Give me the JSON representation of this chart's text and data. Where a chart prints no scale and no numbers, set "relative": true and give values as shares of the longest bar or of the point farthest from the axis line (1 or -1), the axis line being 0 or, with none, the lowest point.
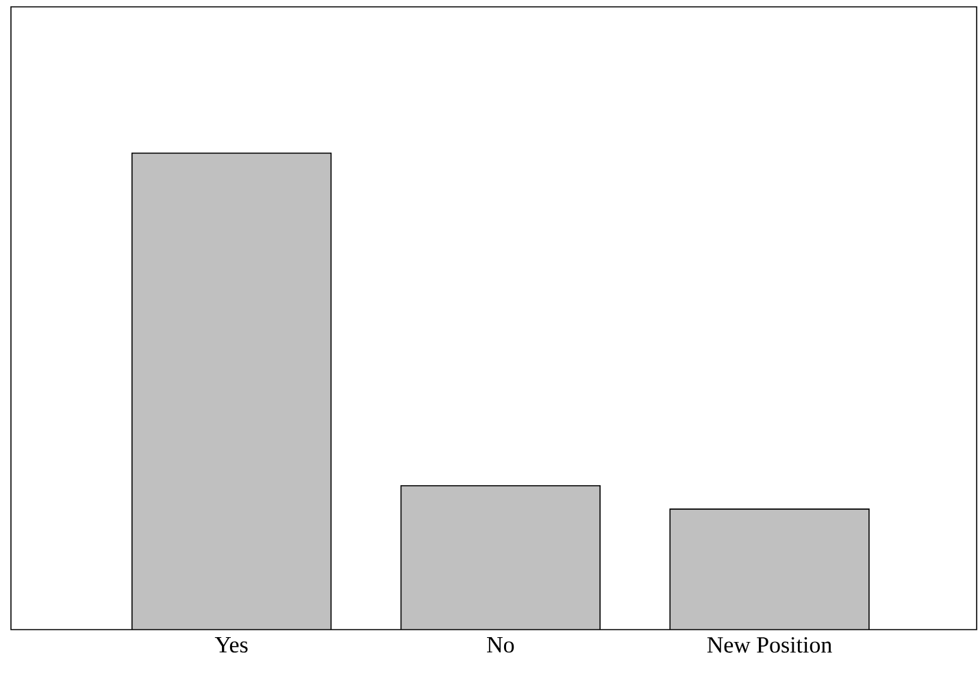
{
  "chart_data": {
    "type": "bar",
    "relative": true,
    "categories": [
      "Yes",
      "No",
      "New Position"
    ],
    "values": [
      1,
      0.302,
      0.253
    ],
    "color": "#c0c0c0"
  }
}
